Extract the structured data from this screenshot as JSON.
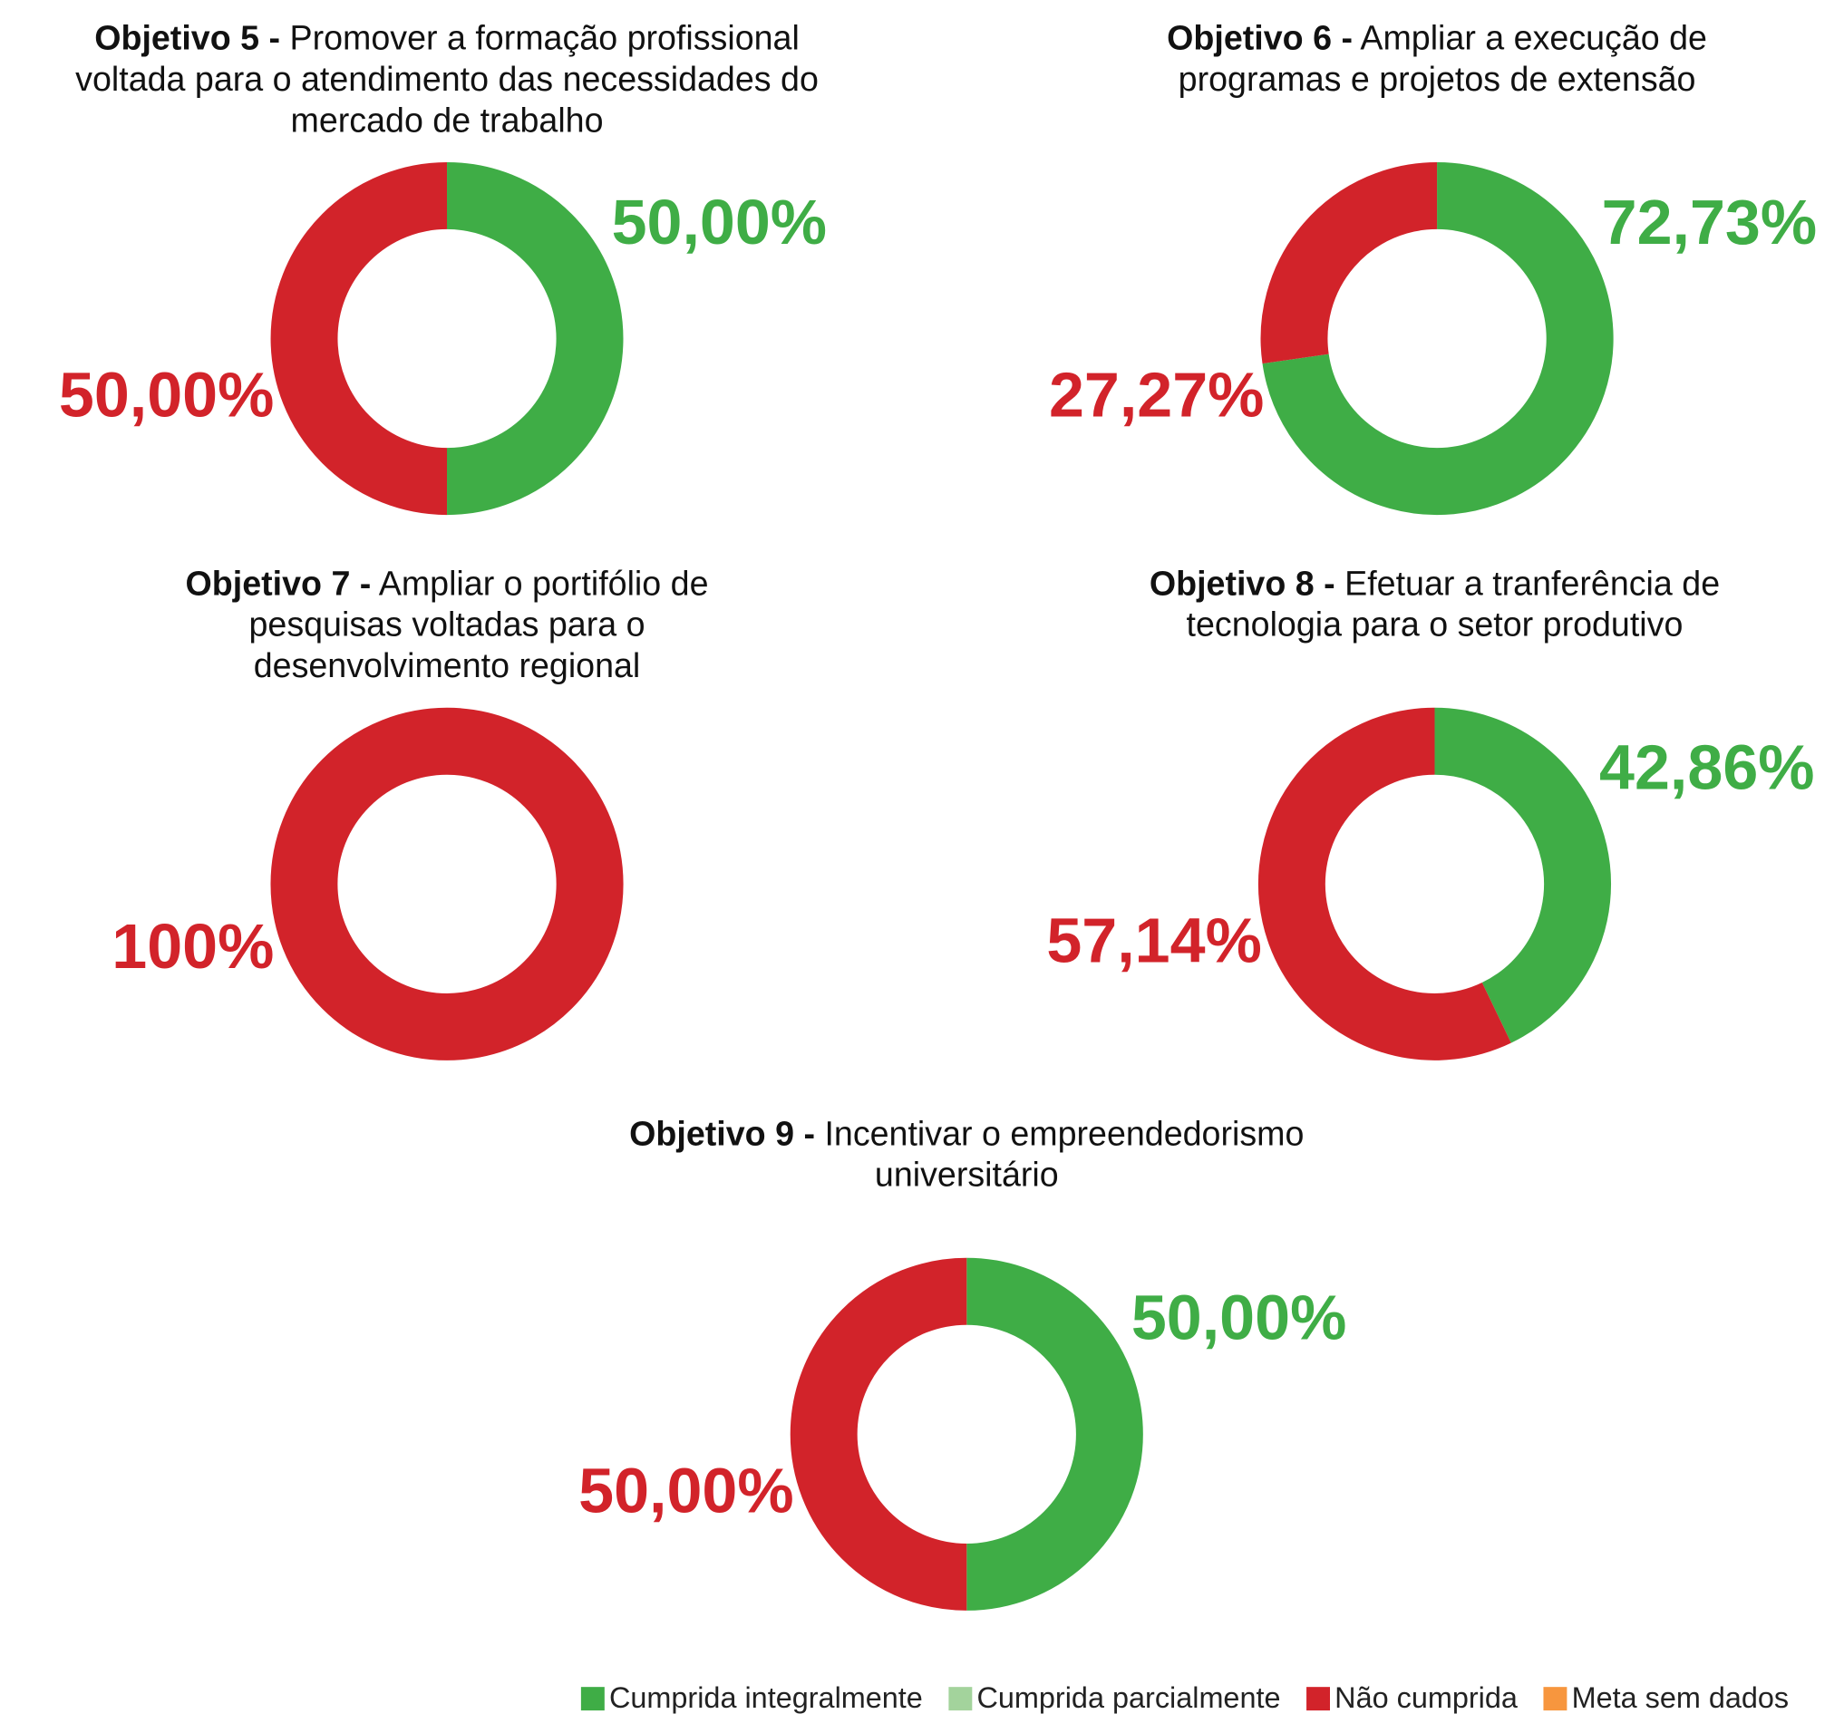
{
  "legend": [
    {
      "name": "Cumprida integralmente",
      "color": "#3fad46"
    },
    {
      "name": "Cumprida parcialmente",
      "color": "#a3d39c"
    },
    {
      "name": "Não cumprida",
      "color": "#d2232a"
    },
    {
      "name": "Meta sem dados",
      "color": "#f7963e"
    }
  ],
  "chart_data": [
    {
      "type": "pie",
      "label": "Objetivo 5 -",
      "title": "Promover a formação profissional voltada para o atendimento das necessidades do mercado de trabalho",
      "values": [
        50,
        0,
        50,
        0
      ],
      "value_labels": [
        "50,00%",
        null,
        "50,00%",
        null
      ]
    },
    {
      "type": "pie",
      "label": "Objetivo 6 -",
      "title": "Ampliar a execução de programas e projetos de extensão",
      "values": [
        72.73,
        0,
        27.27,
        0
      ],
      "value_labels": [
        "72,73%",
        null,
        "27,27%",
        null
      ]
    },
    {
      "type": "pie",
      "label": "Objetivo 7 -",
      "title": "Ampliar o portifólio de pesquisas voltadas para o desenvolvimento regional",
      "values": [
        0,
        0,
        100,
        0
      ],
      "value_labels": [
        null,
        null,
        "100%",
        null
      ]
    },
    {
      "type": "pie",
      "label": "Objetivo 8 -",
      "title": "Efetuar a tranferência de tecnologia para o setor produtivo",
      "values": [
        42.86,
        0,
        57.14,
        0
      ],
      "value_labels": [
        "42,86%",
        null,
        "57,14%",
        null
      ]
    },
    {
      "type": "pie",
      "label": "Objetivo 9 -",
      "title": "Incentivar o empreendedorismo universitário",
      "values": [
        50,
        0,
        50,
        0
      ],
      "value_labels": [
        "50,00%",
        null,
        "50,00%",
        null
      ]
    }
  ]
}
